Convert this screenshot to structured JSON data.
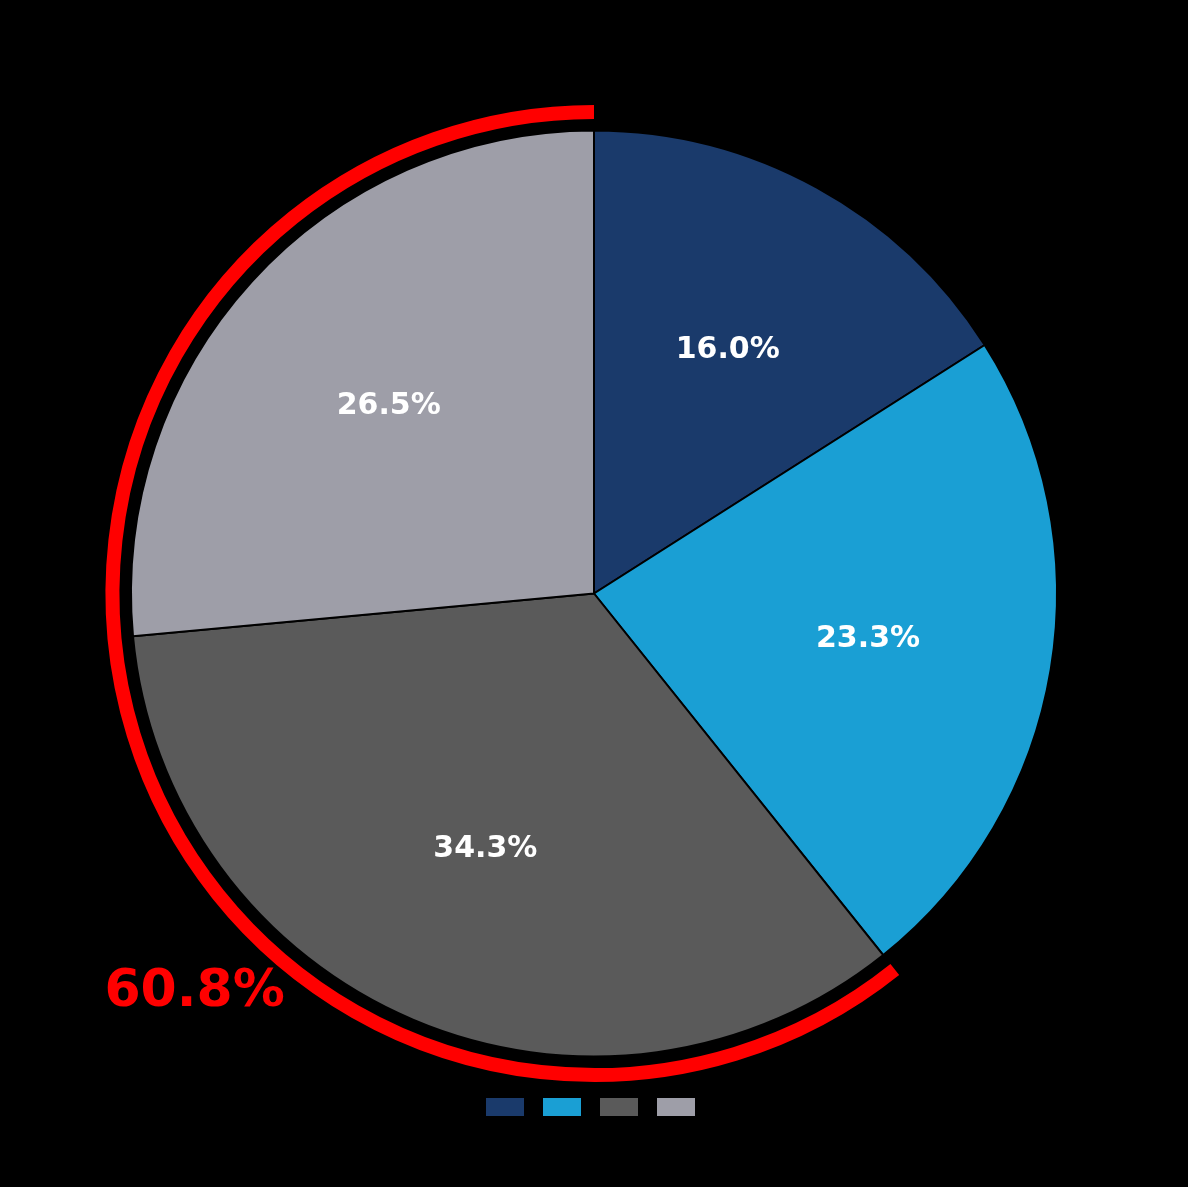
{
  "chart_data": {
    "type": "pie",
    "categories": [
      null,
      null,
      null,
      null
    ],
    "values": [
      16.0,
      23.3,
      34.3,
      26.5
    ],
    "value_labels": [
      "16.0%",
      "23.3%",
      "34.3%",
      "26.5%"
    ],
    "colors": [
      "#1a3a6b",
      "#1a9fd4",
      "#5a5a5a",
      "#9e9ea8"
    ],
    "data_labels": true,
    "legend": "bottom",
    "annotations": [
      {
        "text": "60.8%",
        "color": "#ff0000"
      }
    ]
  }
}
